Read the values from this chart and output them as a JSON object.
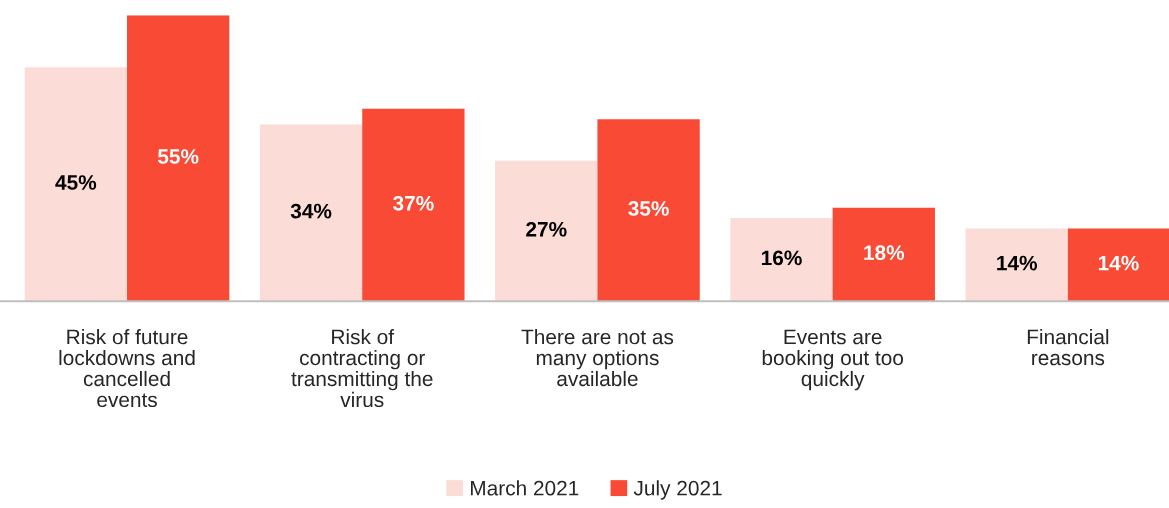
{
  "chart_data": {
    "type": "bar",
    "categories": [
      "Risk of future\nlockdowns and\ncancelled\nevents",
      "Risk of\ncontracting or\ntransmitting the\nvirus",
      "There are not as\nmany options\navailable",
      "Events are\nbooking out too\nquickly",
      "Financial\nreasons"
    ],
    "series": [
      {
        "name": "March 2021",
        "color": "#fcdcd6",
        "values": [
          45,
          34,
          27,
          16,
          14
        ],
        "value_labels": [
          "45%",
          "34%",
          "27%",
          "16%",
          "14%"
        ]
      },
      {
        "name": "July 2021",
        "color": "#f94a35",
        "values": [
          55,
          37,
          35,
          18,
          14
        ],
        "value_labels": [
          "55%",
          "37%",
          "35%",
          "18%",
          "14%"
        ]
      }
    ],
    "legend": "bottom",
    "grid": false
  }
}
